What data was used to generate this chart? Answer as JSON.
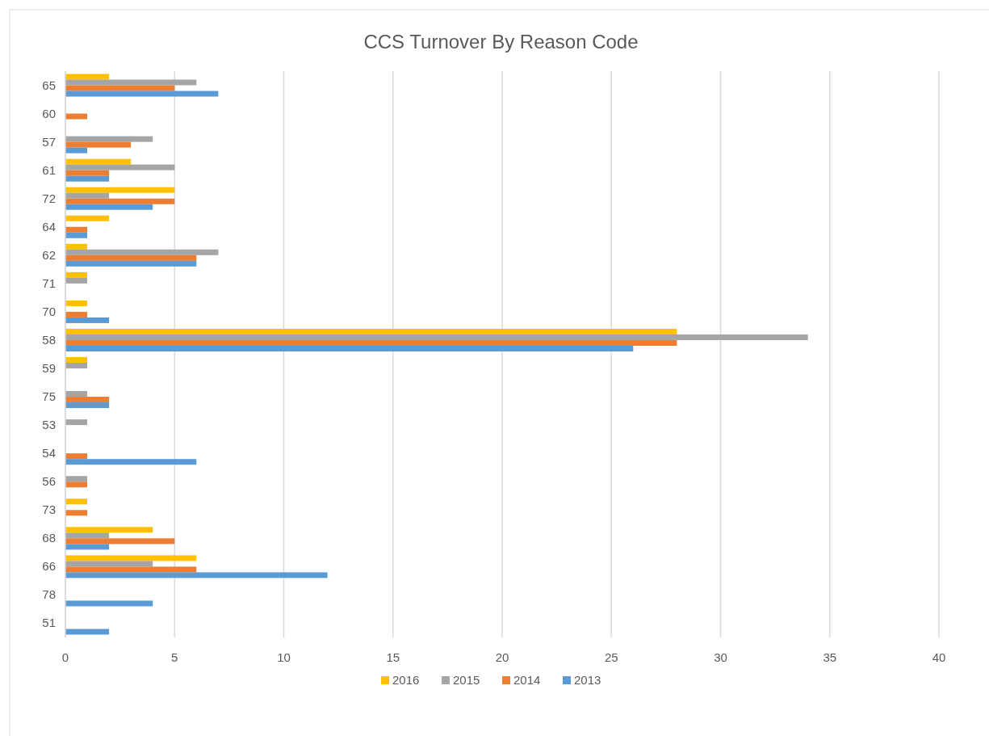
{
  "chart_data": {
    "type": "bar",
    "orientation": "horizontal",
    "title": "CCS Turnover By Reason Code",
    "categories": [
      "65",
      "60",
      "57",
      "61",
      "72",
      "64",
      "62",
      "71",
      "70",
      "58",
      "59",
      "75",
      "53",
      "54",
      "56",
      "73",
      "68",
      "66",
      "78",
      "51"
    ],
    "series": [
      {
        "name": "2016",
        "color": "#ffc000",
        "values": [
          2,
          null,
          null,
          3,
          5,
          2,
          1,
          1,
          1,
          28,
          1,
          null,
          null,
          null,
          null,
          1,
          4,
          6,
          null,
          null
        ]
      },
      {
        "name": "2015",
        "color": "#a5a5a5",
        "values": [
          6,
          null,
          4,
          5,
          2,
          null,
          7,
          1,
          null,
          34,
          1,
          1,
          1,
          null,
          1,
          null,
          2,
          4,
          null,
          null
        ]
      },
      {
        "name": "2014",
        "color": "#ed7d31",
        "values": [
          5,
          1,
          3,
          2,
          5,
          1,
          6,
          null,
          1,
          28,
          null,
          2,
          null,
          1,
          1,
          1,
          5,
          6,
          null,
          null
        ]
      },
      {
        "name": "2013",
        "color": "#5b9bd5",
        "values": [
          7,
          null,
          1,
          2,
          4,
          1,
          6,
          null,
          2,
          26,
          null,
          2,
          null,
          6,
          null,
          null,
          2,
          12,
          4,
          2
        ]
      }
    ],
    "xlim": [
      0,
      40
    ],
    "xticks": [
      0,
      5,
      10,
      15,
      20,
      25,
      30,
      35,
      40
    ],
    "grid": "x",
    "legend": "bottom"
  }
}
